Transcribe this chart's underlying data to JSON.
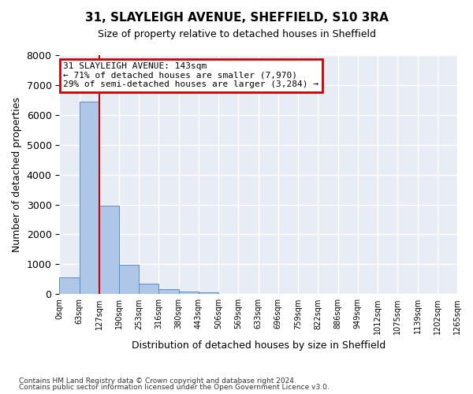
{
  "title": "31, SLAYLEIGH AVENUE, SHEFFIELD, S10 3RA",
  "subtitle": "Size of property relative to detached houses in Sheffield",
  "xlabel": "Distribution of detached houses by size in Sheffield",
  "ylabel": "Number of detached properties",
  "footnote1": "Contains HM Land Registry data © Crown copyright and database right 2024.",
  "footnote2": "Contains public sector information licensed under the Open Government Licence v3.0.",
  "bar_values": [
    550,
    6450,
    2950,
    975,
    340,
    160,
    100,
    60,
    0,
    0,
    0,
    0,
    0,
    0,
    0,
    0,
    0,
    0,
    0,
    0
  ],
  "bar_labels": [
    "0sqm",
    "63sqm",
    "127sqm",
    "190sqm",
    "253sqm",
    "316sqm",
    "380sqm",
    "443sqm",
    "506sqm",
    "569sqm",
    "633sqm",
    "696sqm",
    "759sqm",
    "822sqm",
    "886sqm",
    "949sqm",
    "1012sqm",
    "1075sqm",
    "1139sqm",
    "1202sqm",
    "1265sqm"
  ],
  "bar_color": "#aec6e8",
  "bar_edge_color": "#5a8fc2",
  "bg_color": "#e8ecf5",
  "grid_color": "#ffffff",
  "vline_x": 2.0,
  "vline_color": "#cc0000",
  "annotation_text": "31 SLAYLEIGH AVENUE: 143sqm\n← 71% of detached houses are smaller (7,970)\n29% of semi-detached houses are larger (3,284) →",
  "annotation_box_color": "#cc0000",
  "ylim": [
    0,
    8000
  ],
  "yticks": [
    0,
    1000,
    2000,
    3000,
    4000,
    5000,
    6000,
    7000,
    8000
  ]
}
